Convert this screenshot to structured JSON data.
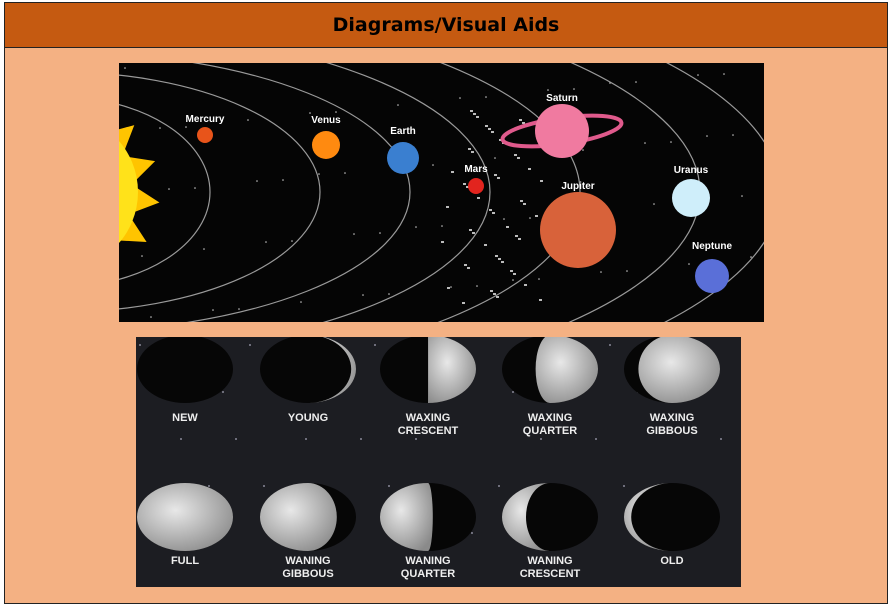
{
  "header": {
    "title": "Diagrams/Visual Aids"
  },
  "solar_system": {
    "planets": [
      "Mercury",
      "Venus",
      "Earth",
      "Mars",
      "Saturn",
      "Jupiter",
      "Uranus",
      "Neptune"
    ]
  },
  "moon_phases": {
    "labels": [
      [
        "NEW"
      ],
      [
        "YOUNG"
      ],
      [
        "WAXING",
        "CRESCENT"
      ],
      [
        "WAXING",
        "QUARTER"
      ],
      [
        "WAXING",
        "GIBBOUS"
      ],
      [
        "FULL"
      ],
      [
        "WANING",
        "GIBBOUS"
      ],
      [
        "WANING",
        "QUARTER"
      ],
      [
        "WANING",
        "CRESCENT"
      ],
      [
        "OLD"
      ]
    ]
  }
}
